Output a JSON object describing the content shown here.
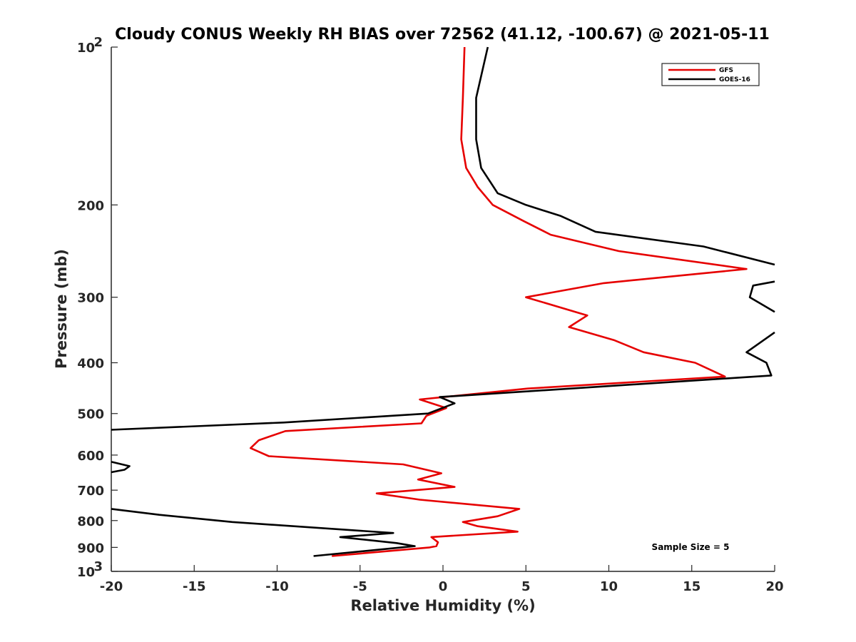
{
  "chart_data": {
    "type": "line",
    "title": "Cloudy CONUS Weekly RH BIAS over 72562 (41.12, -100.67) @ 2021-05-11",
    "xlabel": "Relative Humidity (%)",
    "ylabel": "Pressure (mb)",
    "xlim": [
      -20,
      20
    ],
    "ylim": [
      100,
      1000
    ],
    "y_scale": "log",
    "y_reversed": true,
    "grid": false,
    "legend_position": "top-right",
    "xticks": [
      "-20",
      "-15",
      "-10",
      "-5",
      "0",
      "5",
      "10",
      "15",
      "20"
    ],
    "yticks": [
      {
        "value": 100,
        "base": "10",
        "exp": "2"
      },
      {
        "value": 200,
        "label": "200"
      },
      {
        "value": 300,
        "label": "300"
      },
      {
        "value": 400,
        "label": "400"
      },
      {
        "value": 500,
        "label": "500"
      },
      {
        "value": 600,
        "label": "600"
      },
      {
        "value": 700,
        "label": "700"
      },
      {
        "value": 800,
        "label": "800"
      },
      {
        "value": 900,
        "label": "900"
      },
      {
        "value": 1000,
        "base": "10",
        "exp": "3"
      }
    ],
    "series": [
      {
        "name": "GFS",
        "color": "#e60000",
        "points": [
          [
            1.3,
            100
          ],
          [
            1.2,
            125
          ],
          [
            1.1,
            150
          ],
          [
            1.4,
            170
          ],
          [
            2.1,
            185
          ],
          [
            3.0,
            200
          ],
          [
            4.9,
            215
          ],
          [
            6.5,
            228
          ],
          [
            10.6,
            245
          ],
          [
            18.3,
            265
          ],
          [
            9.7,
            282
          ],
          [
            5.0,
            300
          ],
          [
            8.7,
            325
          ],
          [
            7.6,
            342
          ],
          [
            10.3,
            362
          ],
          [
            12.1,
            382
          ],
          [
            15.2,
            400
          ],
          [
            17.0,
            425
          ],
          [
            5.1,
            448
          ],
          [
            -1.4,
            470
          ],
          [
            0.2,
            488
          ],
          [
            -1.0,
            505
          ],
          [
            -1.3,
            522
          ],
          [
            -9.5,
            540
          ],
          [
            -11.1,
            562
          ],
          [
            -11.6,
            582
          ],
          [
            -10.5,
            603
          ],
          [
            -2.4,
            625
          ],
          [
            -0.1,
            650
          ],
          [
            -1.5,
            668
          ],
          [
            0.7,
            690
          ],
          [
            -4.0,
            710
          ],
          [
            -1.4,
            730
          ],
          [
            4.6,
            760
          ],
          [
            3.3,
            785
          ],
          [
            1.2,
            805
          ],
          [
            2.1,
            820
          ],
          [
            4.5,
            840
          ],
          [
            -0.7,
            860
          ],
          [
            -0.3,
            880
          ],
          [
            -0.4,
            895
          ],
          [
            -0.8,
            900
          ],
          [
            -6.7,
            935
          ]
        ]
      },
      {
        "name": "GOES-16",
        "color": "#000000",
        "points": [
          [
            2.7,
            100
          ],
          [
            2.0,
            125
          ],
          [
            2.0,
            150
          ],
          [
            2.3,
            170
          ],
          [
            3.3,
            190
          ],
          [
            5.0,
            200
          ],
          [
            7.1,
            210
          ],
          [
            9.2,
            225
          ],
          [
            15.7,
            240
          ],
          [
            20.0,
            260
          ],
          null,
          [
            20.0,
            280
          ],
          [
            18.7,
            285
          ],
          [
            18.5,
            300
          ],
          [
            20.0,
            320
          ],
          null,
          [
            20.0,
            350
          ],
          [
            18.3,
            382
          ],
          [
            19.5,
            400
          ],
          [
            19.8,
            423
          ],
          [
            -0.2,
            465
          ],
          [
            0.7,
            478
          ],
          [
            -0.9,
            500
          ],
          [
            -9.6,
            520
          ],
          [
            -20.0,
            537
          ],
          null,
          [
            -20.0,
            618
          ],
          [
            -18.9,
            630
          ],
          [
            -19.2,
            640
          ],
          [
            -20.0,
            647
          ],
          null,
          [
            -20.0,
            760
          ],
          [
            -17.1,
            780
          ],
          [
            -15.3,
            790
          ],
          [
            -12.7,
            805
          ],
          [
            -3.0,
            845
          ],
          [
            -6.2,
            860
          ],
          [
            -2.8,
            883
          ],
          [
            -1.7,
            895
          ],
          [
            -7.8,
            935
          ]
        ]
      }
    ],
    "annotation": "Sample Size = 5"
  }
}
